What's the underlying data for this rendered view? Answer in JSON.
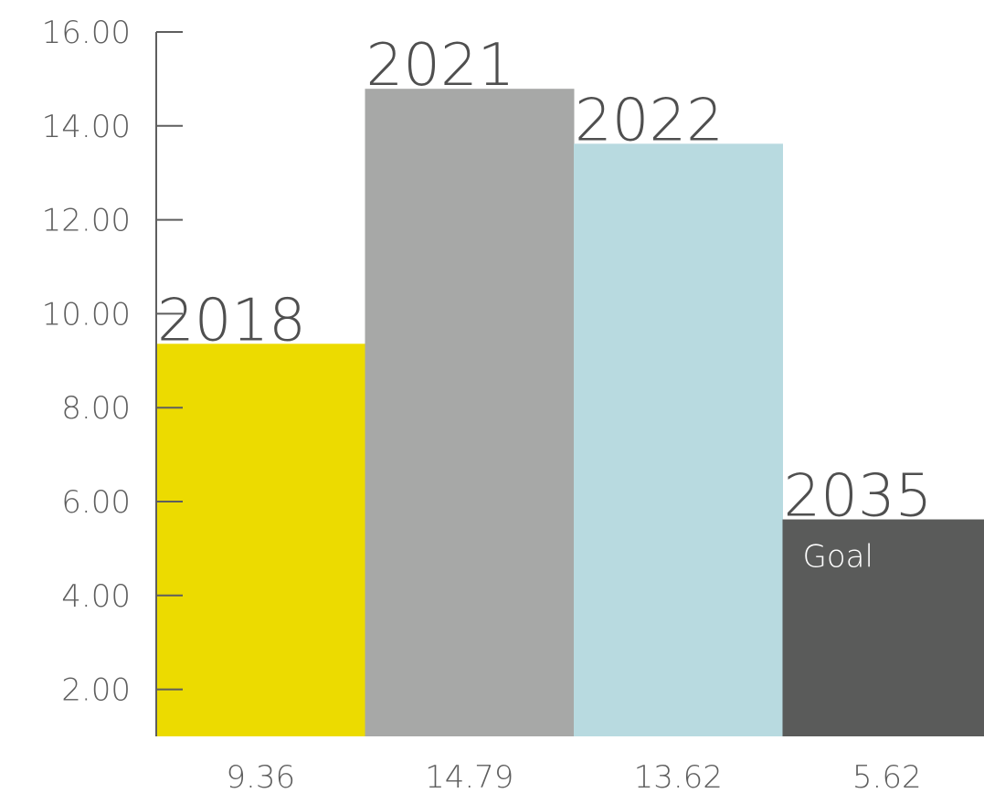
{
  "chart_data": {
    "type": "bar",
    "categories": [
      "2018",
      "2021",
      "2022",
      "2035"
    ],
    "values": [
      9.36,
      14.79,
      13.62,
      5.62
    ],
    "value_labels": [
      "9.36",
      "14.79",
      "13.62",
      "5.62"
    ],
    "bar_notes": [
      "",
      "",
      "",
      "Goal"
    ],
    "colors": [
      "#ecdb00",
      "#a7a8a7",
      "#b8dae0",
      "#5a5b5a"
    ],
    "ylim": [
      1.0,
      16.0
    ],
    "yticks": [
      2,
      4,
      6,
      8,
      10,
      12,
      14,
      16
    ],
    "ytick_labels": [
      "2.00",
      "4.00",
      "6.00",
      "8.00",
      "10.00",
      "12.00",
      "14.00",
      "16.00"
    ],
    "grid": false,
    "axis_color": "#5e5e5e"
  }
}
